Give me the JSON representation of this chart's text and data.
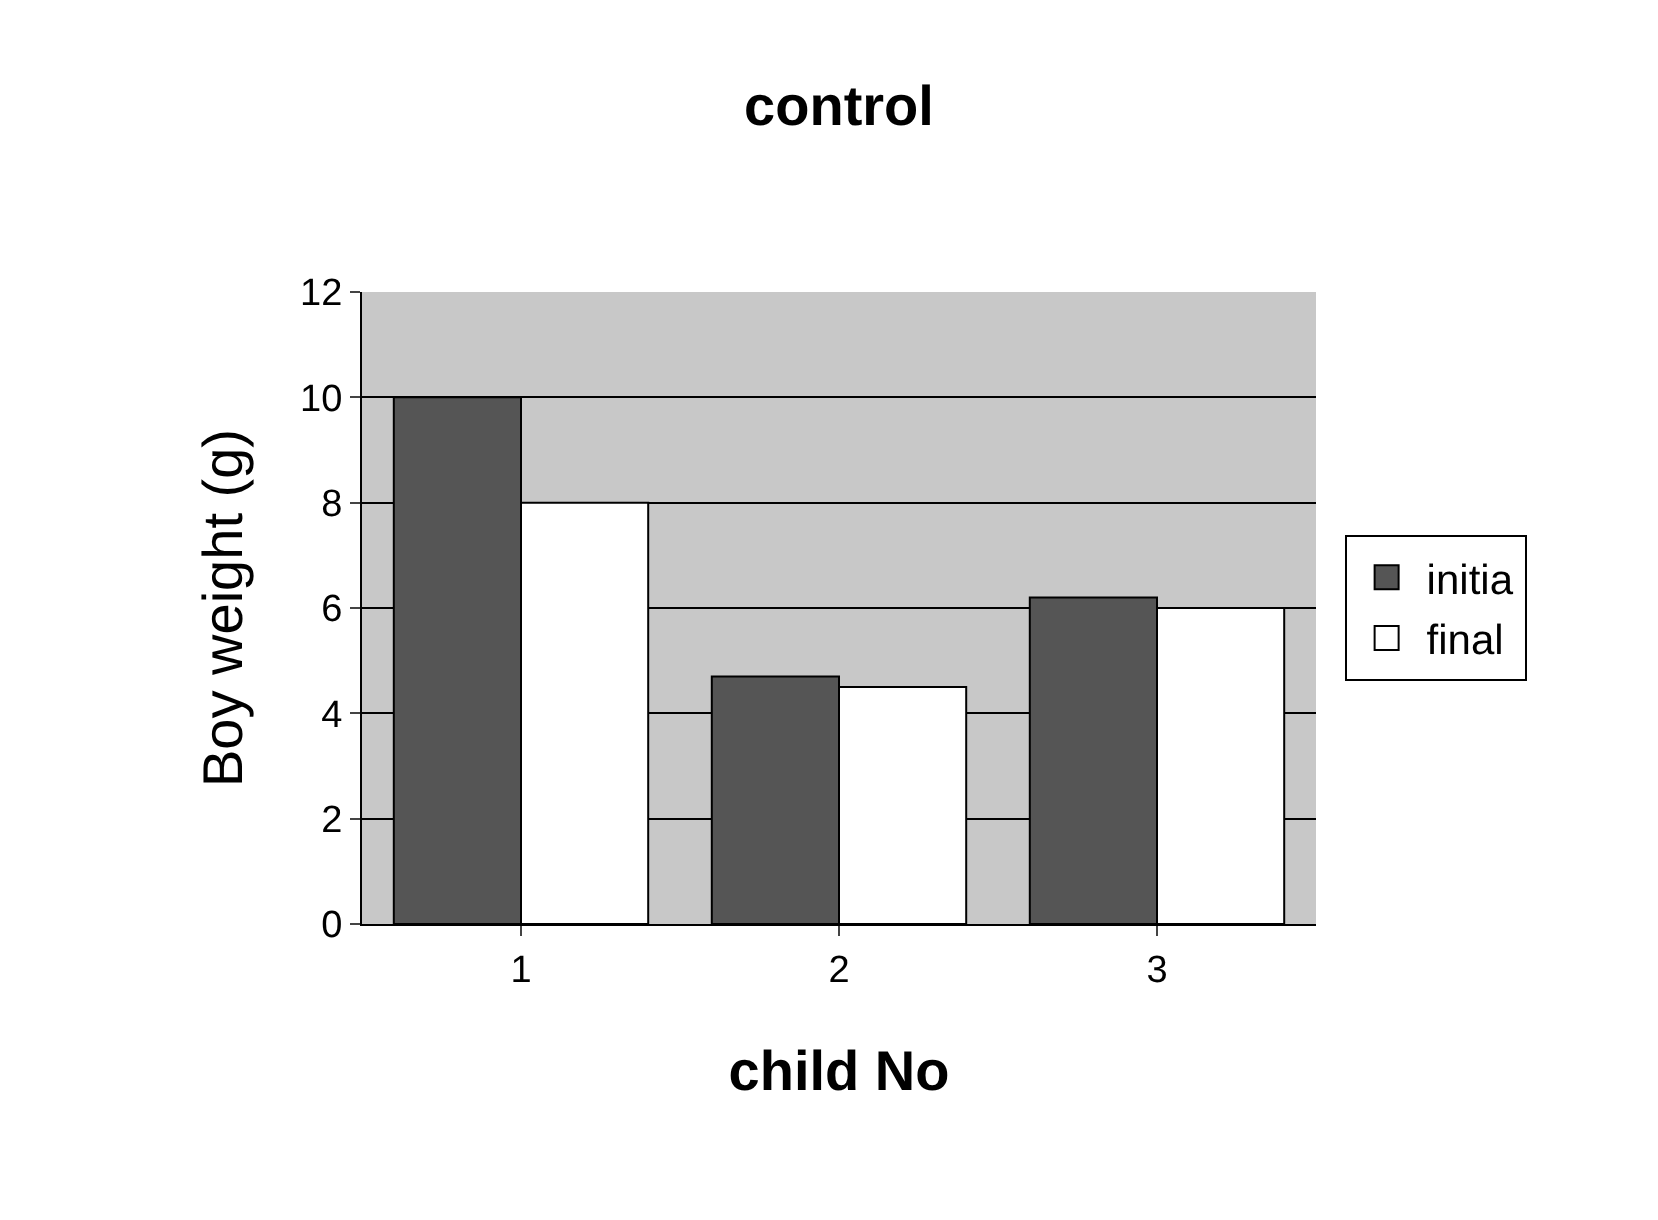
{
  "chart_data": {
    "type": "bar",
    "title": "control",
    "xlabel": "child No",
    "ylabel": "Boy weight (g)",
    "categories": [
      "1",
      "2",
      "3"
    ],
    "series": [
      {
        "name": "initia",
        "color": "#555555",
        "values": [
          10,
          4.7,
          6.2
        ]
      },
      {
        "name": "final",
        "color": "#ffffff",
        "values": [
          8,
          4.5,
          6
        ]
      }
    ],
    "ylim": [
      0,
      12
    ],
    "yticks": [
      0,
      2,
      4,
      6,
      8,
      10,
      12
    ],
    "grid": "y",
    "legend": "right"
  }
}
